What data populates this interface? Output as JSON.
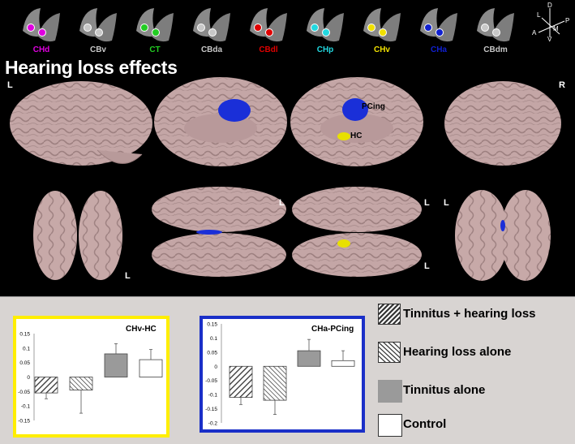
{
  "figure": {
    "title": "Hearing loss effects",
    "orientation": {
      "left": "L",
      "right": "R"
    },
    "view_labels": [
      "L",
      "L",
      "L",
      "L",
      "L"
    ],
    "region_labels": {
      "pcing": "PCing",
      "hc": "HC"
    },
    "axis_compass": {
      "d": "D",
      "v": "V",
      "a": "A",
      "p": "P",
      "l": "L",
      "m": "M"
    }
  },
  "seed_regions": [
    {
      "label": "CHd",
      "color": "#e000e0"
    },
    {
      "label": "CBv",
      "color": "#c8c8c8"
    },
    {
      "label": "CT",
      "color": "#22cc22"
    },
    {
      "label": "CBda",
      "color": "#c8c8c8"
    },
    {
      "label": "CBdl",
      "color": "#e00000"
    },
    {
      "label": "CHp",
      "color": "#22d8e0"
    },
    {
      "label": "CHv",
      "color": "#f0e000"
    },
    {
      "label": "CHa",
      "color": "#1020d0"
    },
    {
      "label": "CBdm",
      "color": "#c8c8c8"
    }
  ],
  "legend": [
    {
      "label": "Tinnitus + hearing loss",
      "pattern": "dense-hatch"
    },
    {
      "label": "Hearing loss alone",
      "pattern": "sparse-hatch"
    },
    {
      "label": "Tinnitus alone",
      "pattern": "gray"
    },
    {
      "label": "Control",
      "pattern": "white"
    }
  ],
  "chart_data": [
    {
      "type": "bar",
      "title": "CHv-HC",
      "border_color": "#ffee00",
      "categories": [
        "Tinnitus + hearing loss",
        "Hearing loss alone",
        "Tinnitus alone",
        "Control"
      ],
      "values": [
        -0.055,
        -0.045,
        0.08,
        0.06
      ],
      "errors": [
        0.02,
        0.08,
        0.035,
        0.035
      ],
      "ylim": [
        -0.15,
        0.15
      ],
      "yticks": [
        -0.15,
        -0.1,
        -0.05,
        0,
        0.05,
        0.1,
        0.15
      ],
      "ytick_labels": [
        "-0.15",
        "-0.1",
        "-0.05",
        "0",
        "0.05",
        "0.1",
        "0.15"
      ],
      "xlabel": "",
      "ylabel": ""
    },
    {
      "type": "bar",
      "title": "CHa-PCing",
      "border_color": "#1a2fc8",
      "categories": [
        "Tinnitus + hearing loss",
        "Hearing loss alone",
        "Tinnitus alone",
        "Control"
      ],
      "values": [
        -0.11,
        -0.12,
        0.055,
        0.02
      ],
      "errors": [
        0.025,
        0.05,
        0.04,
        0.035
      ],
      "ylim": [
        -0.2,
        0.15
      ],
      "yticks": [
        -0.2,
        -0.15,
        -0.1,
        -0.05,
        0,
        0.05,
        0.1,
        0.15
      ],
      "ytick_labels": [
        "-0.2",
        "-0.15",
        "-0.1",
        "-0.05",
        "0",
        "0.05",
        "0.1",
        "0.15"
      ],
      "xlabel": "",
      "ylabel": ""
    }
  ]
}
